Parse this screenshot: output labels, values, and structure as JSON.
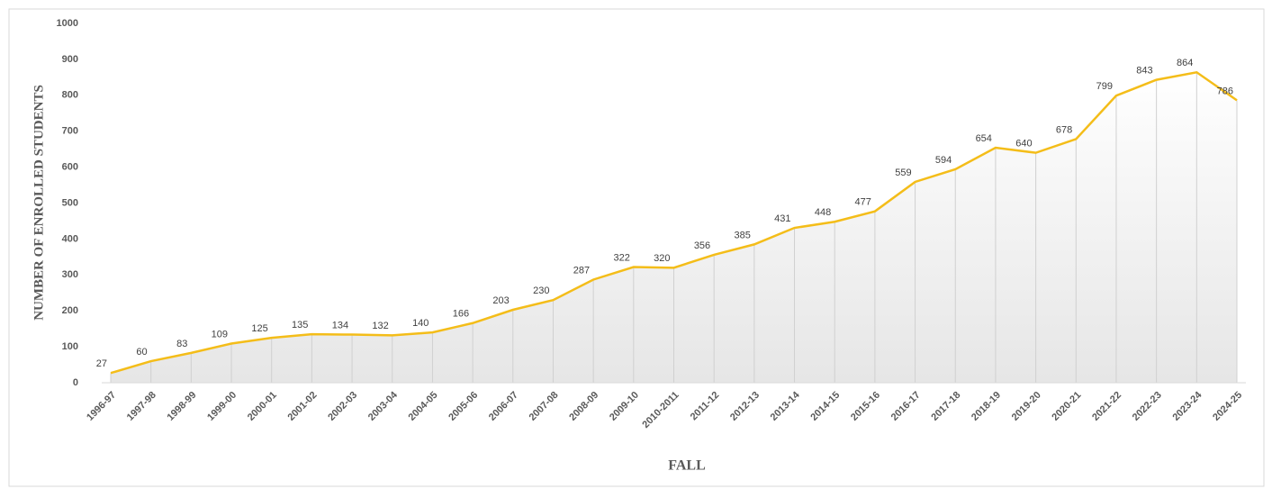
{
  "chart_data": {
    "type": "line",
    "x_label": "FALL",
    "y_label": "NUMBER OF ENROLLED STUDENTS",
    "categories": [
      "1996-97",
      "1997-98",
      "1998-99",
      "1999-00",
      "2000-01",
      "2001-02",
      "2002-03",
      "2003-04",
      "2004-05",
      "2005-06",
      "2006-07",
      "2007-08",
      "2008-09",
      "2009-10",
      "2010-2011",
      "2011-12",
      "2012-13",
      "2013-14",
      "2014-15",
      "2015-16",
      "2016-17",
      "2017-18",
      "2018-19",
      "2019-20",
      "2020-21",
      "2021-22",
      "2022-23",
      "2023-24",
      "2024-25"
    ],
    "values": [
      27,
      60,
      83,
      109,
      125,
      135,
      134,
      132,
      140,
      166,
      203,
      230,
      287,
      322,
      320,
      356,
      385,
      431,
      448,
      477,
      559,
      594,
      654,
      640,
      678,
      799,
      843,
      864,
      786
    ],
    "color": "#f4bd19",
    "ylim": [
      0,
      1000
    ],
    "yticks": [
      0,
      100,
      200,
      300,
      400,
      500,
      600,
      700,
      800,
      900,
      1000
    ]
  }
}
